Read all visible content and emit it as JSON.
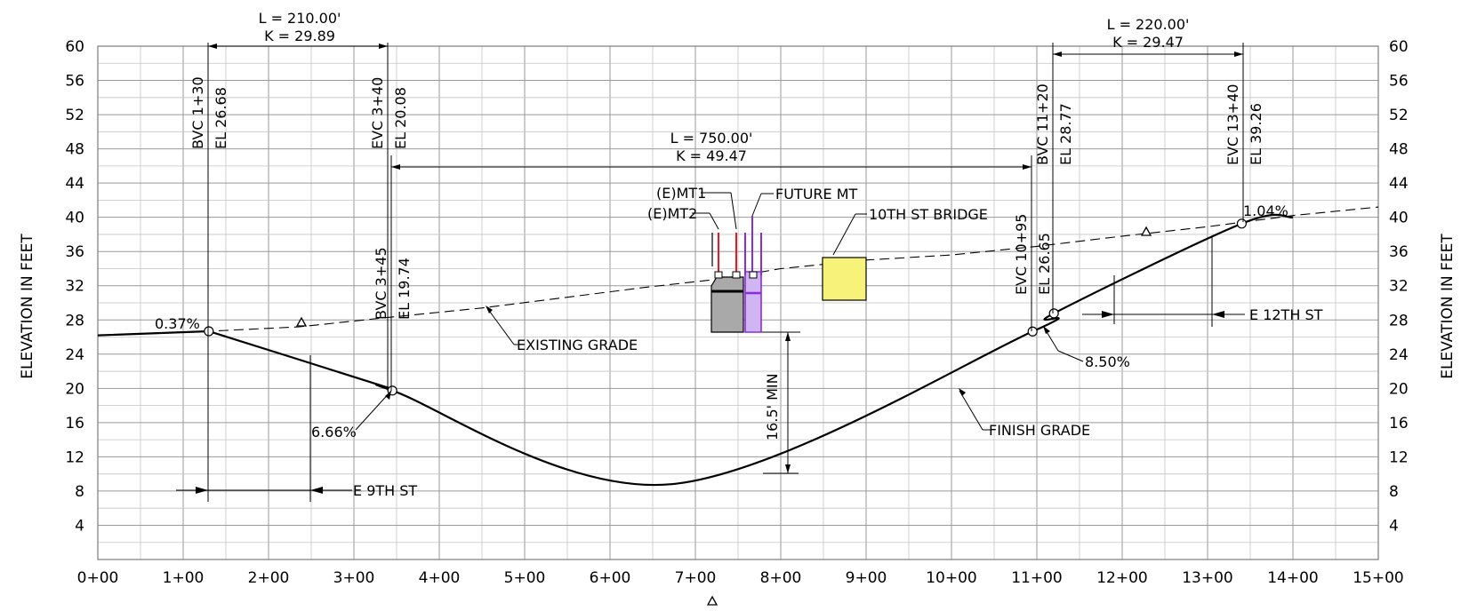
{
  "axis": {
    "y_title": "ELEVATION IN FEET",
    "y_ticks": [
      4,
      8,
      12,
      16,
      20,
      24,
      28,
      32,
      36,
      40,
      44,
      48,
      52,
      56,
      60
    ],
    "x_ticks": [
      "0+00",
      "1+00",
      "2+00",
      "3+00",
      "4+00",
      "5+00",
      "6+00",
      "7+00",
      "8+00",
      "9+00",
      "10+00",
      "11+00",
      "12+00",
      "13+00",
      "14+00",
      "15+00"
    ]
  },
  "vertical_curves": [
    {
      "id": "vc1",
      "length": "L = 210.00'",
      "k": "K = 29.89"
    },
    {
      "id": "vc2",
      "length": "L = 750.00'",
      "k": "K = 49.47"
    },
    {
      "id": "vc3",
      "length": "L = 220.00'",
      "k": "K = 29.47"
    }
  ],
  "stations": [
    {
      "id": "bvc1",
      "station": "BVC 1+30",
      "elev": "EL 26.68"
    },
    {
      "id": "evc1",
      "station": "EVC 3+40",
      "elev": "EL 20.08"
    },
    {
      "id": "bvc2",
      "station": "BVC 3+45",
      "elev": "EL 19.74"
    },
    {
      "id": "evc2",
      "station": "EVC 10+95",
      "elev": "EL 26.65"
    },
    {
      "id": "bvc3",
      "station": "BVC 11+20",
      "elev": "EL 28.77"
    },
    {
      "id": "evc3",
      "station": "EVC 13+40",
      "elev": "EL 39.26"
    }
  ],
  "grades": {
    "g1": "0.37%",
    "g2": "6.66%",
    "g3": "8.50%",
    "g4": "1.04%"
  },
  "callouts": {
    "existing_grade": "EXISTING GRADE",
    "finish_grade": "FINISH GRADE",
    "emt1": "(E)MT1",
    "emt2": "(E)MT2",
    "future_mt": "FUTURE MT",
    "bridge": "10TH ST BRIDGE",
    "clearance": "16.5' MIN",
    "street_9th": "E 9TH ST",
    "street_12th": "E 12TH ST"
  },
  "chart_data": {
    "type": "line",
    "xlabel": "",
    "ylabel": "ELEVATION IN FEET",
    "xlim": [
      0,
      1500
    ],
    "ylim": [
      0,
      60
    ],
    "series": [
      {
        "values": [
          [
            0,
            26.2
          ],
          [
            130,
            26.68
          ],
          [
            236,
            27.2
          ],
          [
            340,
            28.3
          ],
          [
            450,
            29.4
          ],
          [
            640,
            31.8
          ],
          [
            730,
            32.8
          ],
          [
            800,
            34.0
          ],
          [
            900,
            35.0
          ],
          [
            1000,
            35.6
          ],
          [
            1100,
            36.6
          ],
          [
            1200,
            37.8
          ],
          [
            1300,
            38.9
          ],
          [
            1400,
            40.2
          ],
          [
            1500,
            41.2
          ]
        ]
      },
      {
        "values": [
          [
            130,
            26.68
          ],
          [
            340,
            20.08
          ],
          [
            345,
            19.74
          ],
          [
            672,
            8.8
          ],
          [
            1095,
            26.65
          ],
          [
            1120,
            28.77
          ],
          [
            1340,
            39.26
          ],
          [
            1400,
            40.0
          ]
        ]
      }
    ]
  },
  "colors": {
    "bridge_fill": "#f7f37a",
    "pier_gray": "#a9a9a9",
    "pier_purple": "#cfb6f2",
    "purple_stroke": "#8a2be2",
    "red_stroke": "#e8191e"
  }
}
